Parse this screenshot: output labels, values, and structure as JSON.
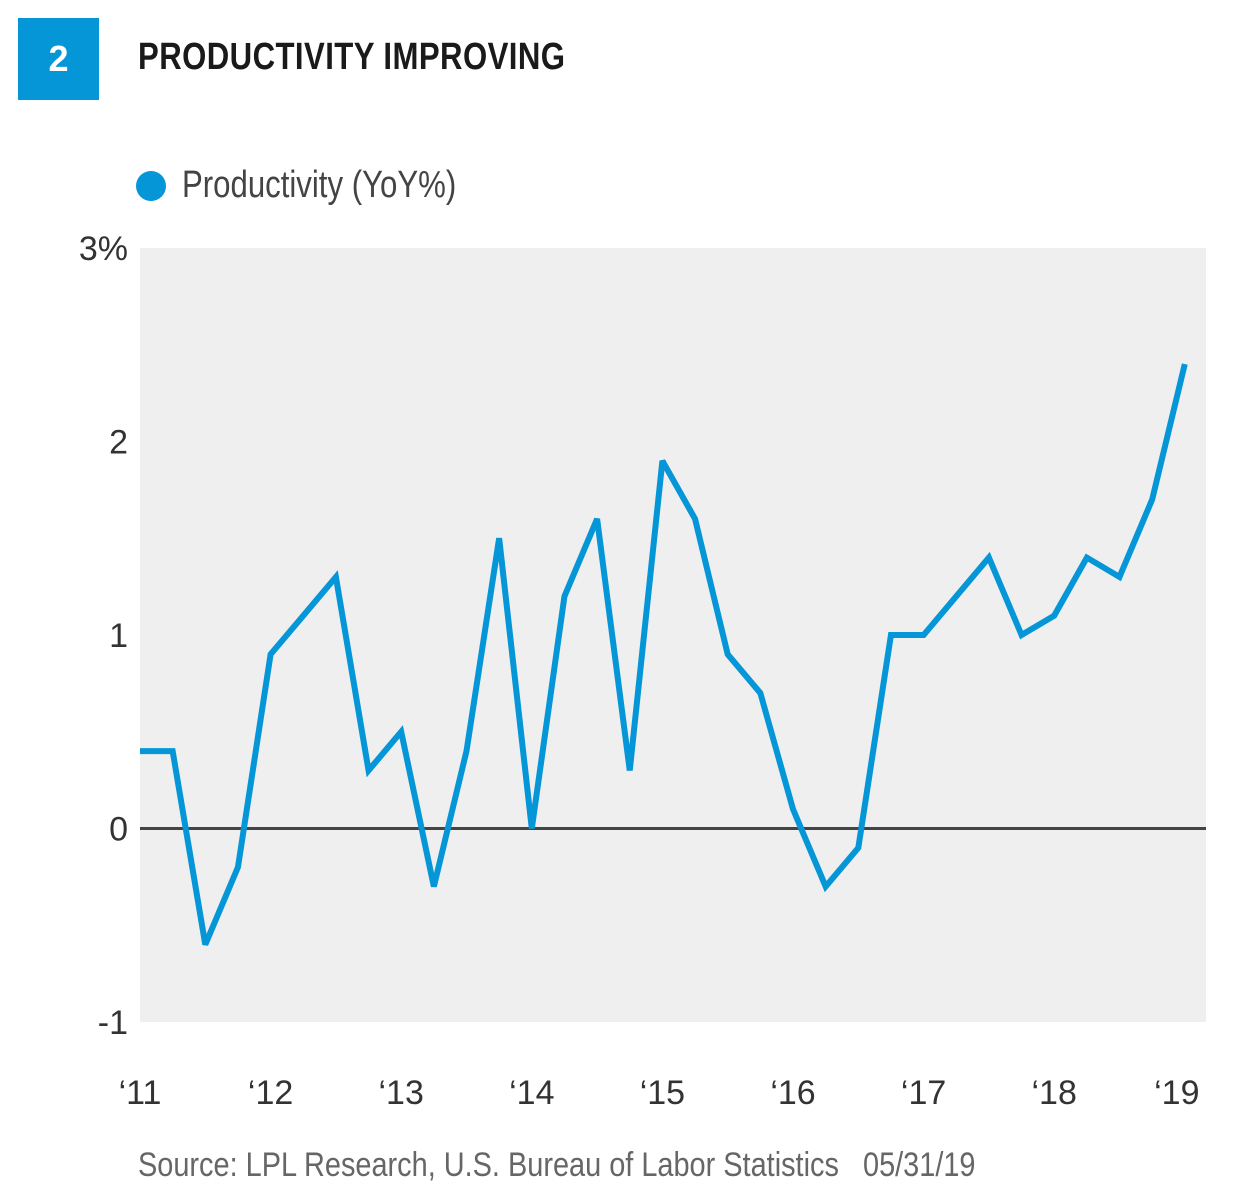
{
  "badge": "2",
  "title": "PRODUCTIVITY IMPROVING",
  "source": "Source: LPL Research, U.S. Bureau of Labor Statistics",
  "date": "05/31/19",
  "chart_data": {
    "type": "line",
    "title": "PRODUCTIVITY IMPROVING",
    "xlabel": "",
    "ylabel": "",
    "ylim": [
      -1,
      3
    ],
    "y_ticks": [
      "3%",
      "2",
      "1",
      "0",
      "-1"
    ],
    "y_tick_values": [
      3,
      2,
      1,
      0,
      -1
    ],
    "x_tick_labels": [
      "‘11",
      "‘12",
      "‘13",
      "‘14",
      "‘15",
      "‘16",
      "‘17",
      "‘18",
      "‘19"
    ],
    "grid": false,
    "zero_line": true,
    "legend_position": "top-left",
    "colors": {
      "series": "#0596d8",
      "plot_bg": "#efefef",
      "zero_line": "#444444"
    },
    "series": [
      {
        "name": "Productivity (YoY%)",
        "x": [
          "2011Q1",
          "2011Q2",
          "2011Q3",
          "2011Q4",
          "2012Q1",
          "2012Q2",
          "2012Q3",
          "2012Q4",
          "2013Q1",
          "2013Q2",
          "2013Q3",
          "2013Q4",
          "2014Q1",
          "2014Q2",
          "2014Q3",
          "2014Q4",
          "2015Q1",
          "2015Q2",
          "2015Q3",
          "2015Q4",
          "2016Q1",
          "2016Q2",
          "2016Q3",
          "2016Q4",
          "2017Q1",
          "2017Q2",
          "2017Q3",
          "2017Q4",
          "2018Q1",
          "2018Q2",
          "2018Q3",
          "2018Q4",
          "2019Q1"
        ],
        "values": [
          0.4,
          0.4,
          -0.6,
          -0.2,
          0.9,
          1.1,
          1.3,
          0.3,
          0.5,
          -0.3,
          0.4,
          1.5,
          0.0,
          1.2,
          1.6,
          0.3,
          1.9,
          1.6,
          0.9,
          0.7,
          0.1,
          -0.3,
          -0.1,
          1.0,
          1.0,
          1.2,
          1.4,
          1.0,
          1.1,
          1.4,
          1.3,
          1.7,
          2.4
        ]
      }
    ]
  }
}
